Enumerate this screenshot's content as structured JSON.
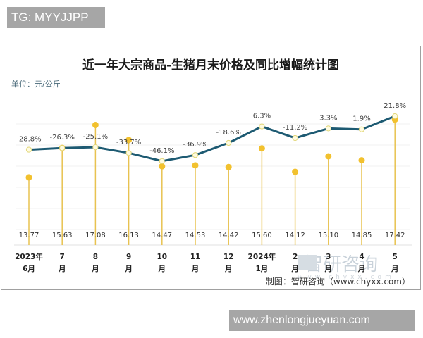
{
  "overlay": {
    "top_tag": "TG: MYYJJPP",
    "bottom_tag": "www.zhenlongjueyuan.com"
  },
  "chart": {
    "title": "近一年大宗商品-生猪月末价格及同比增幅统计图",
    "unit": "单位：元/公斤",
    "source": "制图：智研咨询（www.chyxx.com）",
    "watermark": "智研咨询",
    "watermark_url": "www.chyxx.com"
  },
  "colors": {
    "line": "#1d5a72",
    "lollipop": "#f2c12e",
    "stem": "#e8c250",
    "marker_fill": "#fffbe0"
  },
  "chart_data": {
    "type": "line+lollipop",
    "title": "近一年大宗商品-生猪月末价格及同比增幅统计图",
    "unit": "元/公斤",
    "categories": [
      [
        "2023年",
        "6月"
      ],
      [
        "7",
        "月"
      ],
      [
        "8",
        "月"
      ],
      [
        "9",
        "月"
      ],
      [
        "10",
        "月"
      ],
      [
        "11",
        "月"
      ],
      [
        "12",
        "月"
      ],
      [
        "2024年",
        "1月"
      ],
      [
        "2",
        "月"
      ],
      [
        "3",
        "月"
      ],
      [
        "4",
        "月"
      ],
      [
        "5",
        "月"
      ]
    ],
    "series": [
      {
        "name": "月末价格(元/公斤)",
        "type": "lollipop",
        "values": [
          13.77,
          15.63,
          17.08,
          16.13,
          14.47,
          14.53,
          14.42,
          15.6,
          14.12,
          15.1,
          14.85,
          17.42
        ]
      },
      {
        "name": "同比增幅",
        "type": "line",
        "values": [
          -28.8,
          -26.3,
          -25.1,
          -33.7,
          -46.1,
          -36.9,
          -18.6,
          6.3,
          -11.2,
          3.3,
          1.9,
          21.8
        ],
        "labels": [
          "-28.8%",
          "-26.3%",
          "-25.1%",
          "-33.7%",
          "-46.1%",
          "-36.9%",
          "-18.6%",
          "6.3%",
          "-11.2%",
          "3.3%",
          "1.9%",
          "21.8%"
        ]
      }
    ],
    "price_labels": [
      "13.77",
      "15.63",
      "17.08",
      "16.13",
      "14.47",
      "14.53",
      "14.42",
      "15.60",
      "14.12",
      "15.10",
      "14.85",
      "17.42"
    ],
    "legend": "none",
    "grid": true
  }
}
